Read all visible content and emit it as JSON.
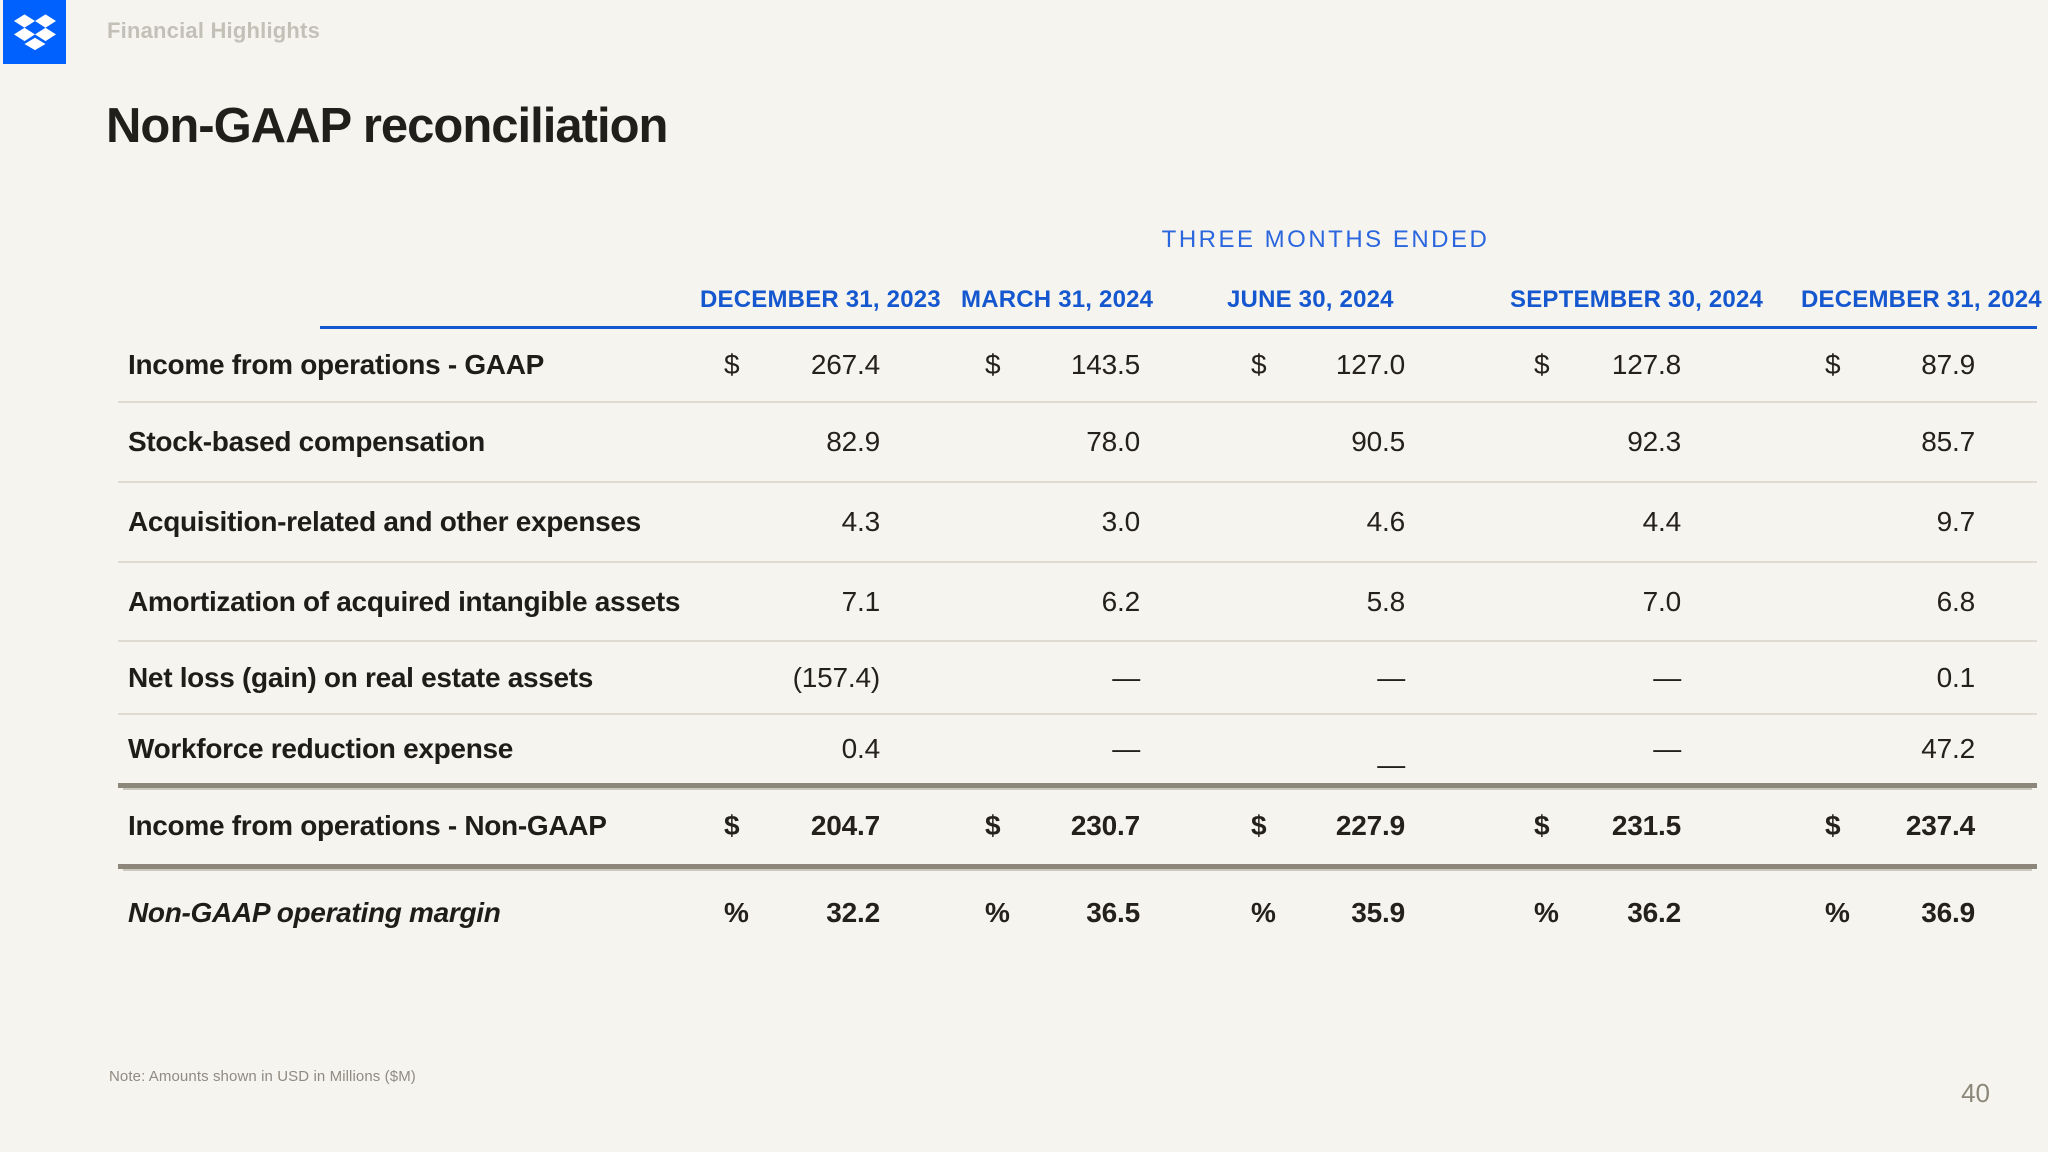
{
  "page": {
    "breadcrumb": "Financial Highlights",
    "title": "Non-GAAP reconciliation",
    "note": "Note: Amounts shown in USD in Millions ($M)",
    "page_number": "40"
  },
  "logo": {
    "name": "dropbox-logo",
    "background": "#0061FE",
    "glyph_color": "#FFFFFF"
  },
  "colors": {
    "background": "#F6F4EF",
    "accent_blue": "#1457CF",
    "group_header_blue": "#2A66DE",
    "text_dark": "#1F1D1A",
    "thin_rule": "#DFDBD3",
    "thick_rule": "#8D877B",
    "muted_gray": "#8F8B82"
  },
  "table": {
    "group_header": "THREE MONTHS ENDED",
    "columns": [
      "DECEMBER 31, 2023",
      "MARCH 31, 2024",
      "JUNE 30, 2024",
      "SEPTEMBER 30, 2024",
      "DECEMBER 31, 2024"
    ],
    "rows": [
      {
        "label": "Income from operations - GAAP",
        "unit": "$",
        "values": [
          "267.4",
          "143.5",
          "127.0",
          "127.8",
          "87.9"
        ],
        "bold": false,
        "rule": "thin"
      },
      {
        "label": "Stock-based compensation",
        "unit": "",
        "values": [
          "82.9",
          "78.0",
          "90.5",
          "92.3",
          "85.7"
        ],
        "bold": false,
        "rule": "thin"
      },
      {
        "label": "Acquisition-related and other expenses",
        "unit": "",
        "values": [
          "4.3",
          "3.0",
          "4.6",
          "4.4",
          "9.7"
        ],
        "bold": false,
        "rule": "thin"
      },
      {
        "label": "Amortization of acquired intangible assets",
        "unit": "",
        "values": [
          "7.1",
          "6.2",
          "5.8",
          "7.0",
          "6.8"
        ],
        "bold": false,
        "rule": "thin"
      },
      {
        "label": "Net loss (gain) on real estate assets",
        "unit": "",
        "values": [
          "(157.4)",
          "—",
          "—",
          "—",
          "0.1"
        ],
        "bold": false,
        "rule": "thin"
      },
      {
        "label": "Workforce reduction expense",
        "unit": "",
        "values": [
          "0.4",
          "—",
          "—",
          "—",
          "47.2"
        ],
        "bold": false,
        "rule": "thick"
      },
      {
        "label": "Income from operations - Non-GAAP",
        "unit": "$",
        "values": [
          "204.7",
          "230.7",
          "227.9",
          "231.5",
          "237.4"
        ],
        "bold": true,
        "rule": "thick"
      },
      {
        "label": "Non-GAAP operating margin",
        "unit": "%",
        "values": [
          "32.2",
          "36.5",
          "35.9",
          "36.2",
          "36.9"
        ],
        "bold": true,
        "italic_label": true,
        "rule": "none"
      }
    ]
  }
}
